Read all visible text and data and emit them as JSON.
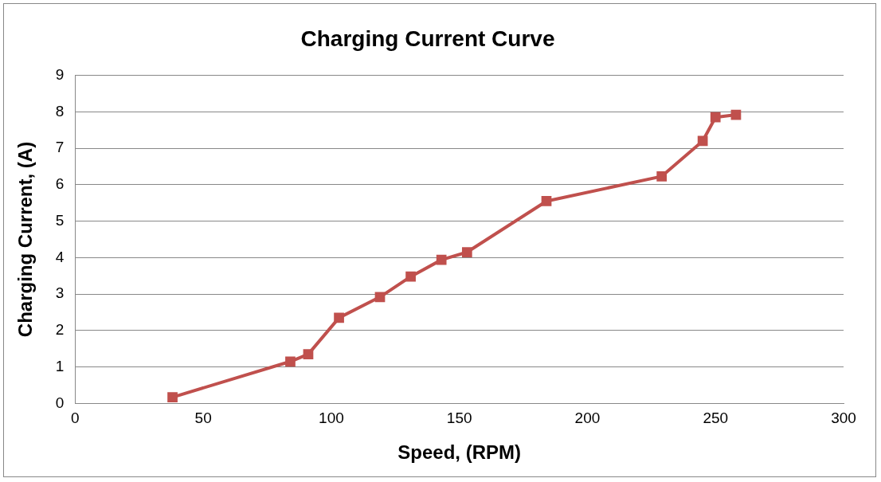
{
  "chart_data": {
    "type": "line",
    "title": "Charging Current Curve",
    "xlabel": "Speed, (RPM)",
    "ylabel": "Charging Current, (A)",
    "x": [
      38,
      84,
      91,
      103,
      119,
      131,
      143,
      153,
      184,
      229,
      245,
      250,
      258
    ],
    "series": [
      {
        "color": "#c0504d",
        "values": [
          0.17,
          1.15,
          1.35,
          2.35,
          2.92,
          3.48,
          3.94,
          4.15,
          5.55,
          6.23,
          7.2,
          7.85,
          7.92
        ]
      }
    ],
    "xlim": [
      0,
      300
    ],
    "xticks": [
      0,
      50,
      100,
      150,
      200,
      250,
      300
    ],
    "ylim": [
      0,
      9
    ],
    "yticks": [
      0,
      1,
      2,
      3,
      4,
      5,
      6,
      7,
      8,
      9
    ],
    "grid": "y",
    "legend": false,
    "marker": "square",
    "line_style": "solid"
  }
}
